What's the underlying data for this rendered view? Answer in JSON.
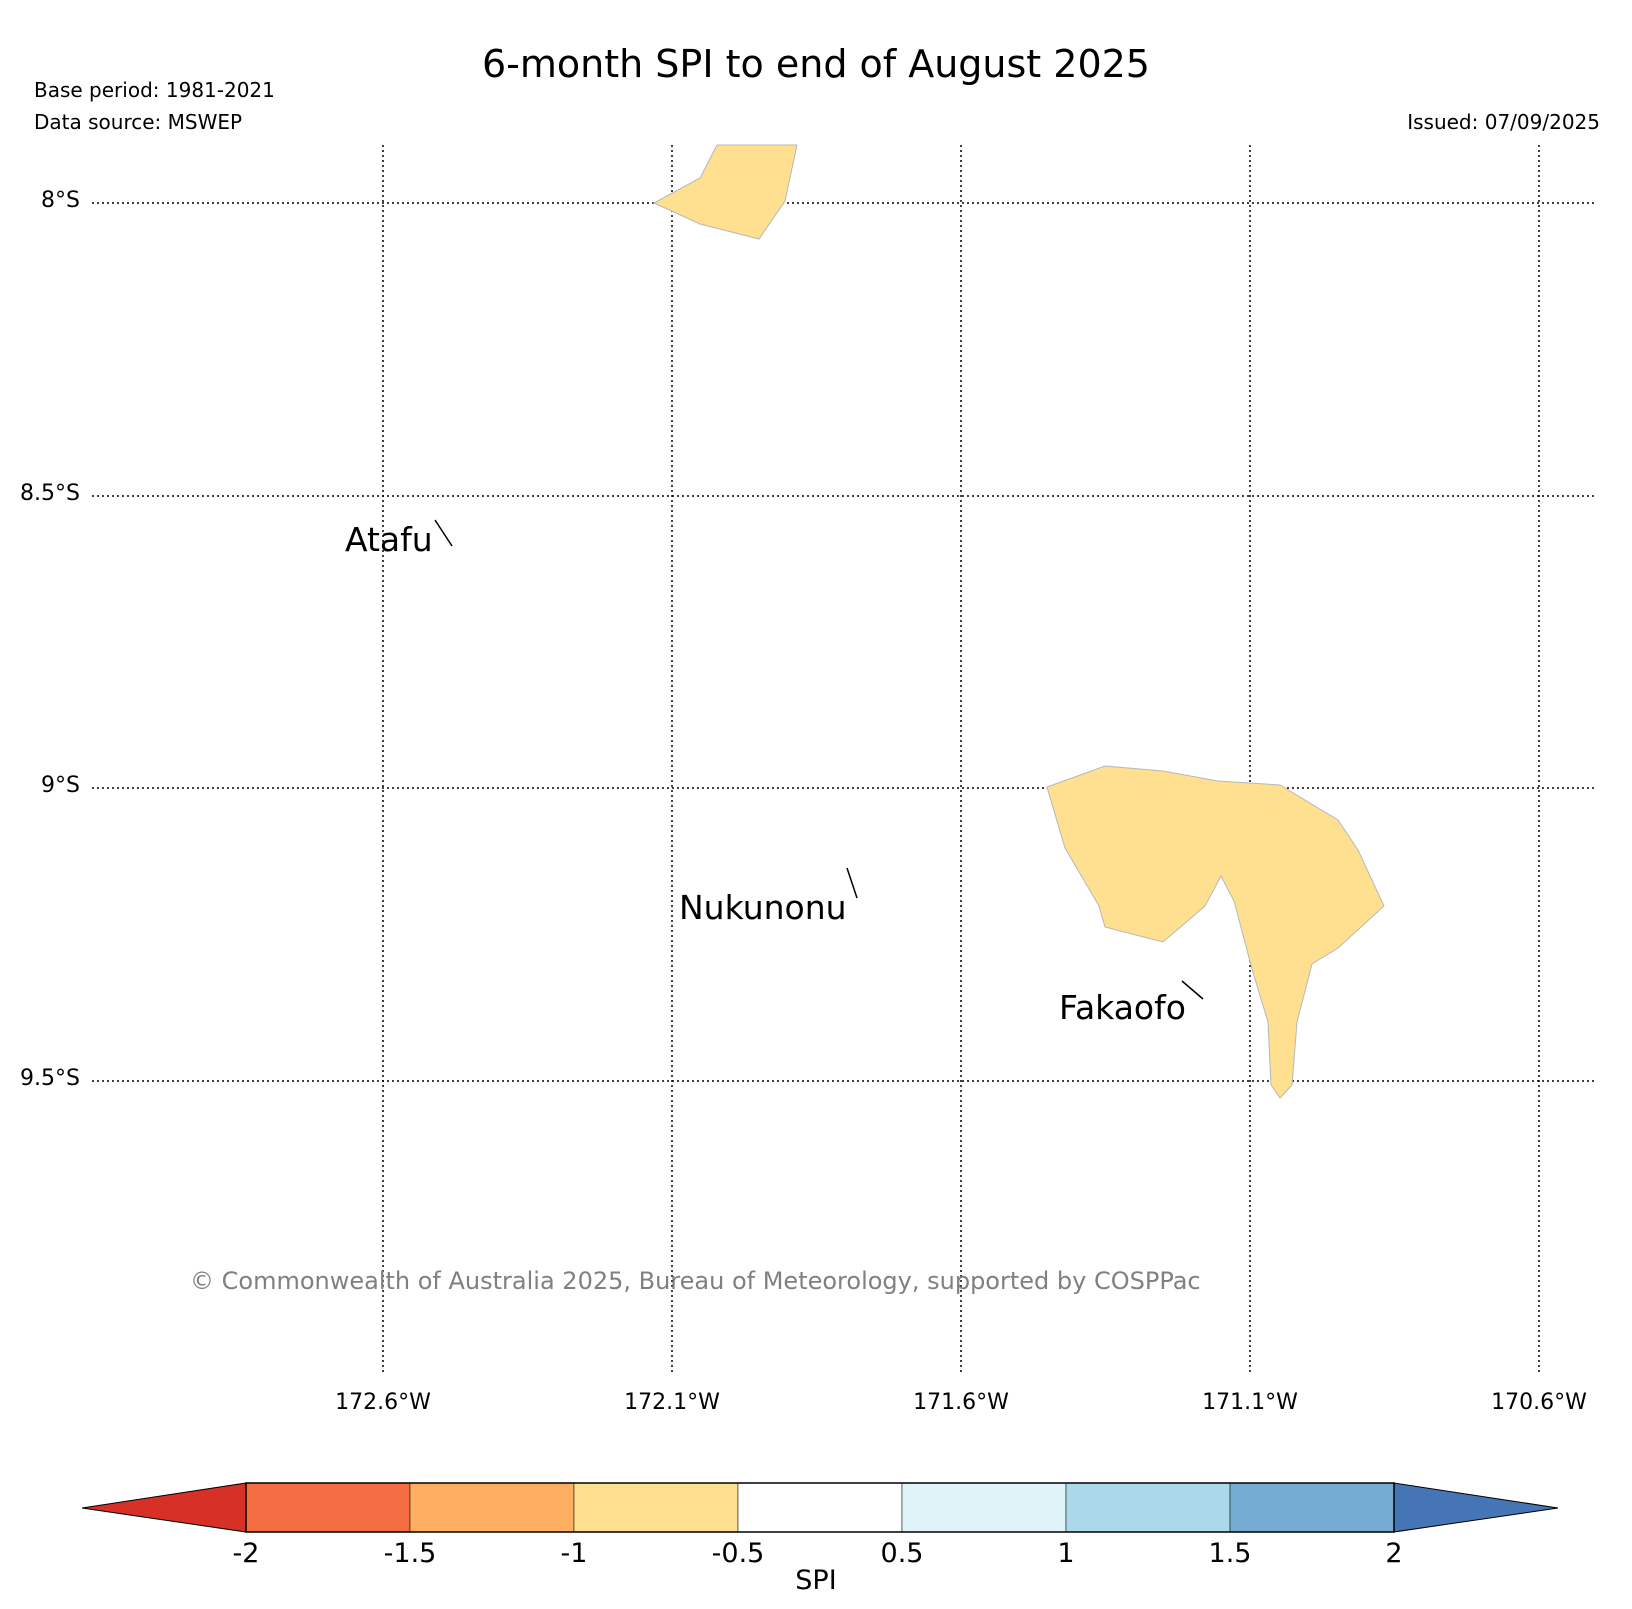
{
  "title": "6-month SPI to end of August 2025",
  "base_period": "Base period: 1981-2021",
  "data_source": "Data source: MSWEP",
  "issued": "Issued: 07/09/2025",
  "copyright": "© Commonwealth of Australia 2025, Bureau of Meteorology, supported by COSPPac",
  "map": {
    "lat_labels": [
      "8°S",
      "8.5°S",
      "9°S",
      "9.5°S"
    ],
    "lon_labels": [
      "172.6°W",
      "172.1°W",
      "171.6°W",
      "171.1°W",
      "170.6°W"
    ],
    "places": [
      {
        "name": "Atafu"
      },
      {
        "name": "Nukunonu"
      },
      {
        "name": "Fakaofo"
      }
    ],
    "region_fill_color": "#fee090",
    "region_spi_class": "-1 to -0.5"
  },
  "colorbar": {
    "label": "SPI",
    "ticks": [
      "-2",
      "-1.5",
      "-1",
      "-0.5",
      "0.5",
      "1",
      "1.5",
      "2"
    ],
    "colors": {
      "below": "#d73027",
      "bands": [
        "#f46d43",
        "#fdae61",
        "#fee090",
        "#ffffff",
        "#e0f3f8",
        "#abd9e9",
        "#74add1"
      ],
      "above": "#4575b4"
    }
  }
}
